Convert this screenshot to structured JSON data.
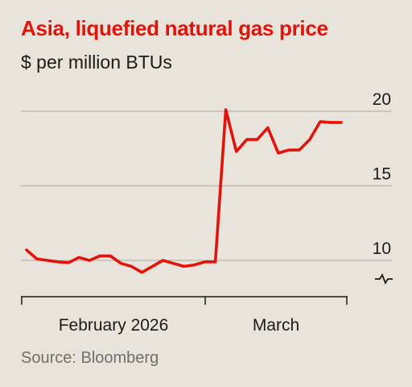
{
  "title": "Asia, liquefied natural gas price",
  "subtitle": "$ per million BTUs",
  "source": "Source: Bloomberg",
  "colors": {
    "line": "#e3120b",
    "title": "#e3120b",
    "grid": "#b9b3aa",
    "background": "#e9e4db"
  },
  "chart_data": {
    "type": "line",
    "title": "Asia, liquefied natural gas price",
    "ylabel": "$ per million BTUs",
    "x_tick_labels": [
      "February 2026",
      "March"
    ],
    "ylim": [
      10,
      20
    ],
    "yticks": [
      10,
      15,
      20
    ],
    "axis_break": true,
    "grid": true,
    "y_axis_position": "right",
    "series": [
      {
        "values": [
          10.7,
          10.1,
          10.0,
          9.9,
          9.85,
          10.2,
          10.0,
          10.3,
          10.3,
          9.8,
          9.6,
          9.2,
          9.6,
          10.0,
          9.8,
          9.6,
          9.7,
          9.9,
          9.9,
          20.1,
          17.3,
          18.1,
          18.1,
          18.9,
          17.2,
          17.4,
          17.4,
          18.1,
          19.3,
          19.25,
          19.25
        ]
      }
    ]
  }
}
